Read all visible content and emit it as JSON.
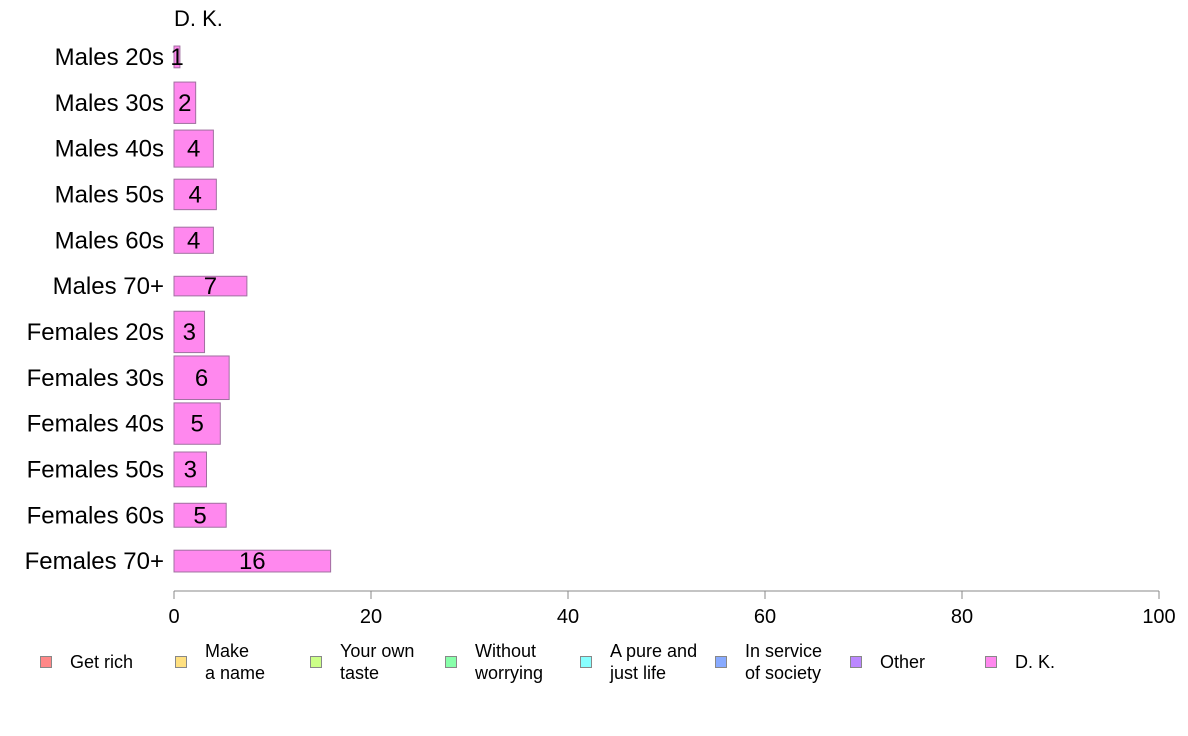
{
  "chart_data": {
    "type": "bar",
    "orientation": "horizontal",
    "panel_title": "D. K.",
    "categories": [
      "Males 20s",
      "Males 30s",
      "Males 40s",
      "Males 50s",
      "Males 60s",
      "Males 70+",
      "Females 20s",
      "Females 30s",
      "Females 40s",
      "Females 50s",
      "Females 60s",
      "Females 70+"
    ],
    "values": [
      1,
      2,
      4,
      4,
      4,
      7,
      3,
      6,
      5,
      3,
      5,
      16
    ],
    "bar_widths_values": [
      0.6,
      2.2,
      4.0,
      4.3,
      4.0,
      7.4,
      3.1,
      5.6,
      4.7,
      3.3,
      5.3,
      15.9
    ],
    "relative_bar_thickness": [
      0.5,
      0.95,
      0.85,
      0.7,
      0.6,
      0.45,
      0.95,
      1.0,
      0.95,
      0.8,
      0.55,
      0.5
    ],
    "xlim": [
      0,
      100
    ],
    "xticks": [
      0,
      20,
      40,
      60,
      80,
      100
    ],
    "xlabel": "",
    "ylabel": "",
    "grid": false,
    "legend_position": "bottom",
    "bar_color": "#ff88ee",
    "bar_stroke": "#a070a0",
    "legend": [
      {
        "label": "Get rich",
        "color": "#ff8888"
      },
      {
        "label": "Make\na name",
        "color": "#ffe080"
      },
      {
        "label": "Your own\ntaste",
        "color": "#ccff88"
      },
      {
        "label": "Without\nworrying",
        "color": "#88ffaa"
      },
      {
        "label": "A pure and\njust life",
        "color": "#88ffff"
      },
      {
        "label": "In service\nof society",
        "color": "#88aaff"
      },
      {
        "label": "Other",
        "color": "#bb88ff"
      },
      {
        "label": "D. K.",
        "color": "#ff88ee"
      }
    ]
  }
}
